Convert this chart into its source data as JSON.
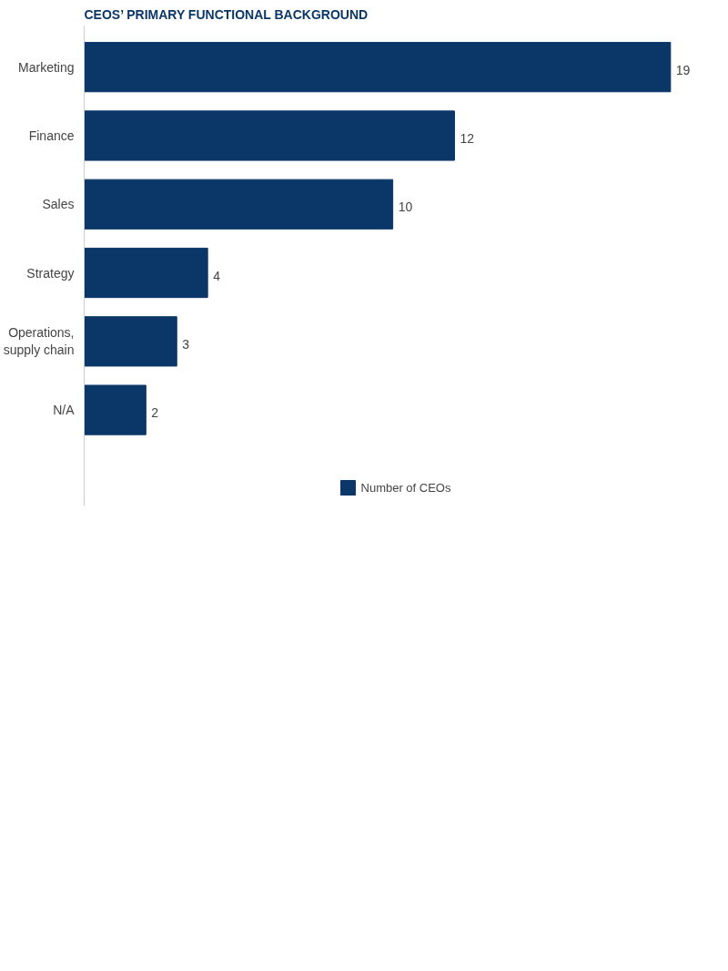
{
  "chart_data": {
    "type": "bar",
    "orientation": "horizontal",
    "title": "CEOS’ PRIMARY FUNCTIONAL BACKGROUND",
    "categories": [
      "Marketing",
      "Finance",
      "Sales",
      "Strategy",
      "Operations,\nsupply chain",
      "N/A"
    ],
    "series": [
      {
        "name": "Number of CEOs",
        "color": "#0b3768",
        "values": [
          19,
          12,
          10,
          4,
          3,
          2
        ]
      }
    ],
    "data_labels": true,
    "legend": "bottom",
    "grid": false
  }
}
